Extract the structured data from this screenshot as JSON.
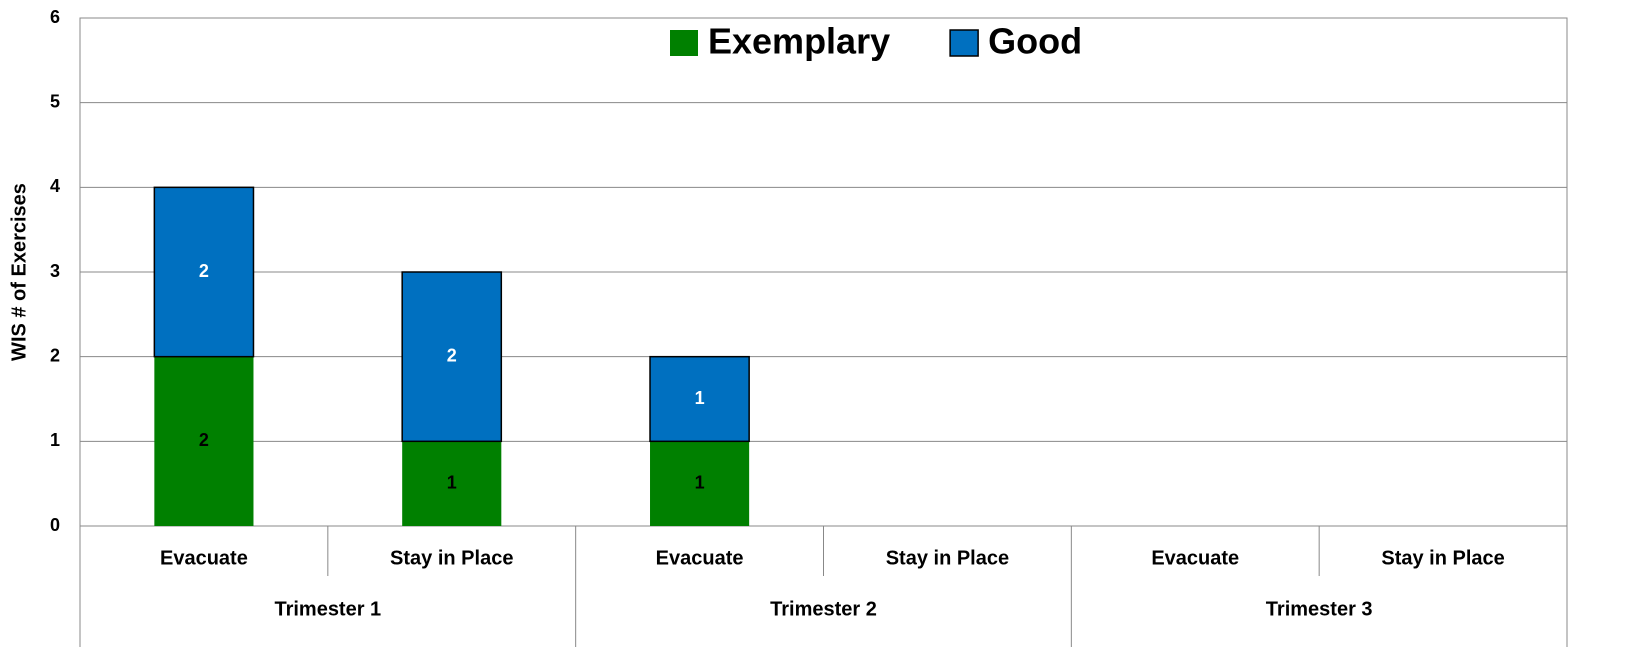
{
  "chart_data": {
    "type": "bar",
    "stacked": true,
    "y_label": "WIS # of Exercises",
    "categories": [
      "Evacuate",
      "Stay in Place",
      "Evacuate",
      "Stay in Place",
      "Evacuate",
      "Stay in Place"
    ],
    "groups": [
      "Trimester 1",
      "Trimester 2",
      "Trimester 3"
    ],
    "series": [
      {
        "name": "Exemplary",
        "color": "#008000",
        "label_color": "#000000",
        "values": [
          2,
          1,
          1,
          null,
          null,
          null
        ]
      },
      {
        "name": "Good",
        "color": "#0070c0",
        "edgecolor": "#000000",
        "label_color": "#ffffff",
        "values": [
          2,
          2,
          1,
          null,
          null,
          null
        ]
      }
    ],
    "ylim": [
      0,
      6
    ],
    "yticks": [
      0,
      1,
      2,
      3,
      4,
      5,
      6
    ],
    "grid": true,
    "legend": "top"
  }
}
